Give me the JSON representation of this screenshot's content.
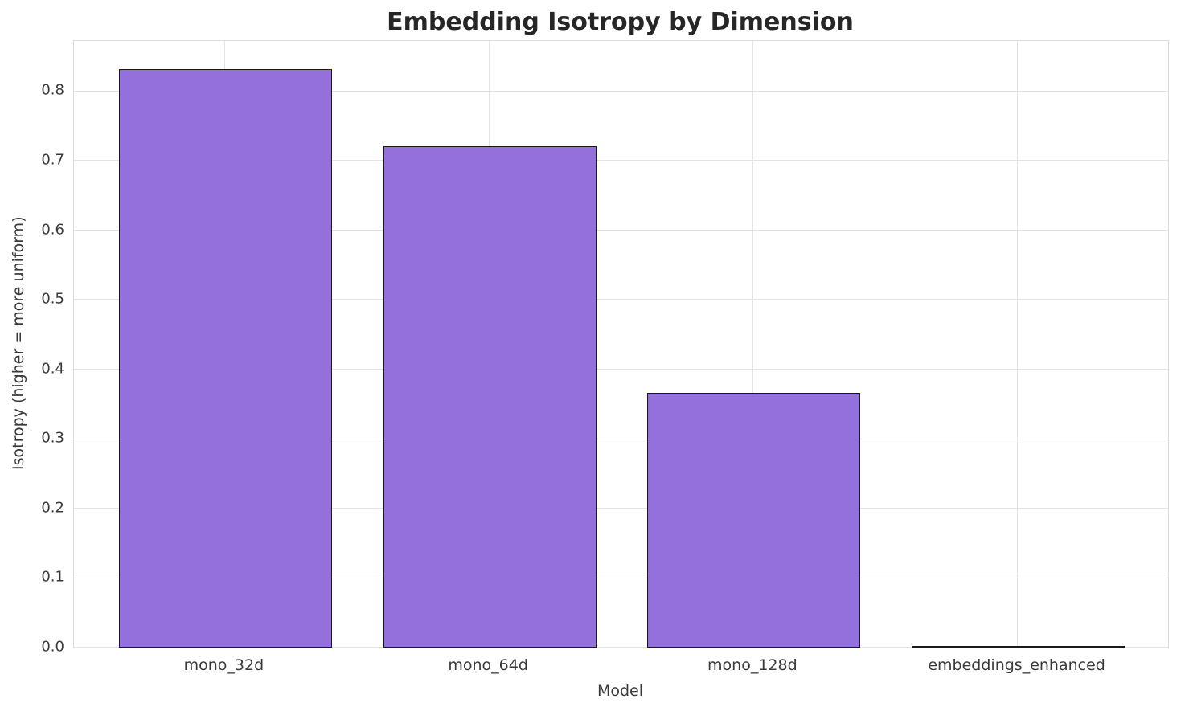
{
  "chart_data": {
    "type": "bar",
    "title": "Embedding Isotropy by Dimension",
    "xlabel": "Model",
    "ylabel": "Isotropy (higher = more uniform)",
    "categories": [
      "mono_32d",
      "mono_64d",
      "mono_128d",
      "embeddings_enhanced"
    ],
    "values": [
      0.83,
      0.72,
      0.365,
      0.0
    ],
    "yticks": [
      0.0,
      0.1,
      0.2,
      0.3,
      0.4,
      0.5,
      0.6,
      0.7,
      0.8
    ],
    "ytick_labels": [
      "0.0",
      "0.1",
      "0.2",
      "0.3",
      "0.4",
      "0.5",
      "0.6",
      "0.7",
      "0.8"
    ],
    "ylim": [
      0,
      0.872
    ],
    "grid": true,
    "legend": "none",
    "colors": {
      "bar_fill": "#9370DB",
      "bar_edge": "#1a1a1a",
      "grid": "#e3e3e3",
      "plot_border": "#dcdcdc",
      "tick_text": "#3a3a3a",
      "title_text": "#262626",
      "background": "#ffffff"
    }
  }
}
